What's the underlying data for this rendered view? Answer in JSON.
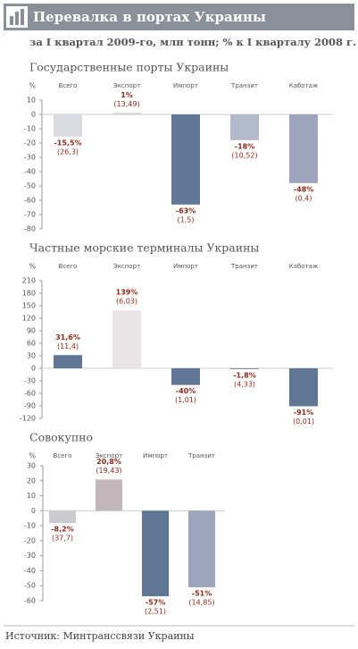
{
  "header": {
    "title": "Перевалка в портах Украины",
    "subtitle": "за I квартал 2009-го, млн тонн; % к I кварталу 2008 г."
  },
  "chart_data": [
    {
      "type": "bar",
      "title": "Государственные порты Украины",
      "y_label": "%",
      "categories": [
        "Всего",
        "Экспорт",
        "Импорт",
        "Транзит",
        "Каботаж"
      ],
      "values": [
        -15.5,
        1,
        -63,
        -18,
        -48
      ],
      "value_labels": [
        "-15,5%",
        "1%",
        "-63%",
        "-18%",
        "-48%"
      ],
      "volume_labels": [
        "(26,3)",
        "(13,49)",
        "(1,5)",
        "(10,52)",
        "(0,4)"
      ],
      "colors": [
        "#d9d9e0",
        "#cfcfd6",
        "#5f7794",
        "#b2b9cb",
        "#9ca5bd"
      ],
      "ylim": [
        -80,
        10
      ],
      "yticks": [
        10,
        0,
        -10,
        -20,
        -30,
        -40,
        -50,
        -60,
        -70,
        -80
      ]
    },
    {
      "type": "bar",
      "title": "Частные морские терминалы Украины",
      "y_label": "%",
      "categories": [
        "Всего",
        "Экспорт",
        "Импорт",
        "Транзит",
        "Каботаж"
      ],
      "values": [
        31.6,
        139,
        -40,
        -1.8,
        -91
      ],
      "value_labels": [
        "31,6%",
        "139%",
        "-40%",
        "-1,8%",
        "-91%"
      ],
      "volume_labels": [
        "(11,4)",
        "(6,03)",
        "(1,01)",
        "(4,33)",
        "(0,01)"
      ],
      "colors": [
        "#5f7794",
        "#e8e4e6",
        "#5f7794",
        "#5f7794",
        "#5f7794"
      ],
      "ylim": [
        -120,
        210
      ],
      "yticks": [
        210,
        180,
        150,
        120,
        90,
        60,
        30,
        0,
        -30,
        -60,
        -90,
        -120
      ]
    },
    {
      "type": "bar",
      "title": "Совокупно",
      "y_label": "%",
      "categories": [
        "Всего",
        "Экспорт",
        "Импорт",
        "Транзит"
      ],
      "values": [
        -8.2,
        20.8,
        -57,
        -51
      ],
      "value_labels": [
        "-8,2%",
        "20,8%",
        "-57%",
        "-51%"
      ],
      "volume_labels": [
        "(37,7)",
        "(19,43)",
        "(2,51)",
        "(14,85)"
      ],
      "colors": [
        "#cacacf",
        "#c2b6ba",
        "#5f7794",
        "#9ca5bd"
      ],
      "ylim": [
        -60,
        30
      ],
      "yticks": [
        30,
        20,
        10,
        0,
        -10,
        -20,
        -30,
        -40,
        -50,
        -60
      ]
    }
  ],
  "source": "Источник: Минтранссвязи Украины"
}
